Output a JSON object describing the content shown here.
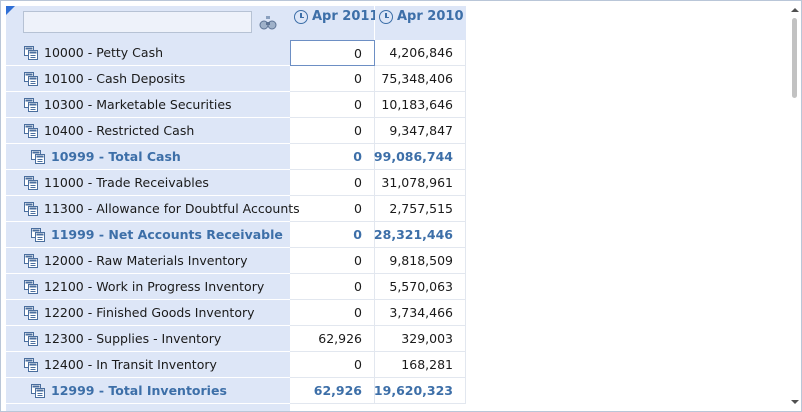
{
  "header": {
    "search": {
      "value": "",
      "placeholder": ""
    },
    "columns": [
      {
        "label": "Apr 2011",
        "icon": "clock-icon"
      },
      {
        "label": "Apr 2010",
        "icon": "clock-icon"
      }
    ]
  },
  "rows": [
    {
      "label": "10000 - Petty Cash",
      "v1": "0",
      "v2": "4,206,846",
      "total": false
    },
    {
      "label": "10100 - Cash Deposits",
      "v1": "0",
      "v2": "75,348,406",
      "total": false
    },
    {
      "label": "10300 - Marketable Securities",
      "v1": "0",
      "v2": "10,183,646",
      "total": false
    },
    {
      "label": "10400 - Restricted Cash",
      "v1": "0",
      "v2": "9,347,847",
      "total": false
    },
    {
      "label": "10999 - Total Cash",
      "v1": "0",
      "v2": "99,086,744",
      "total": true
    },
    {
      "label": "11000 - Trade Receivables",
      "v1": "0",
      "v2": "31,078,961",
      "total": false
    },
    {
      "label": "11300 - Allowance for Doubtful Accounts",
      "v1": "0",
      "v2": "2,757,515",
      "total": false
    },
    {
      "label": "11999 - Net Accounts Receivable",
      "v1": "0",
      "v2": "28,321,446",
      "total": true
    },
    {
      "label": "12000 - Raw Materials Inventory",
      "v1": "0",
      "v2": "9,818,509",
      "total": false
    },
    {
      "label": "12100 - Work in Progress Inventory",
      "v1": "0",
      "v2": "5,570,063",
      "total": false
    },
    {
      "label": "12200 - Finished Goods Inventory",
      "v1": "0",
      "v2": "3,734,466",
      "total": false
    },
    {
      "label": "12300 - Supplies - Inventory",
      "v1": "62,926",
      "v2": "329,003",
      "total": false
    },
    {
      "label": "12400 - In Transit Inventory",
      "v1": "0",
      "v2": "168,281",
      "total": false
    },
    {
      "label": "12999 - Total Inventories",
      "v1": "62,926",
      "v2": "19,620,323",
      "total": true
    }
  ],
  "colors": {
    "header_bg": "#dde6f7",
    "accent": "#3d6fa8",
    "corner_mark": "#2f6fd6"
  }
}
